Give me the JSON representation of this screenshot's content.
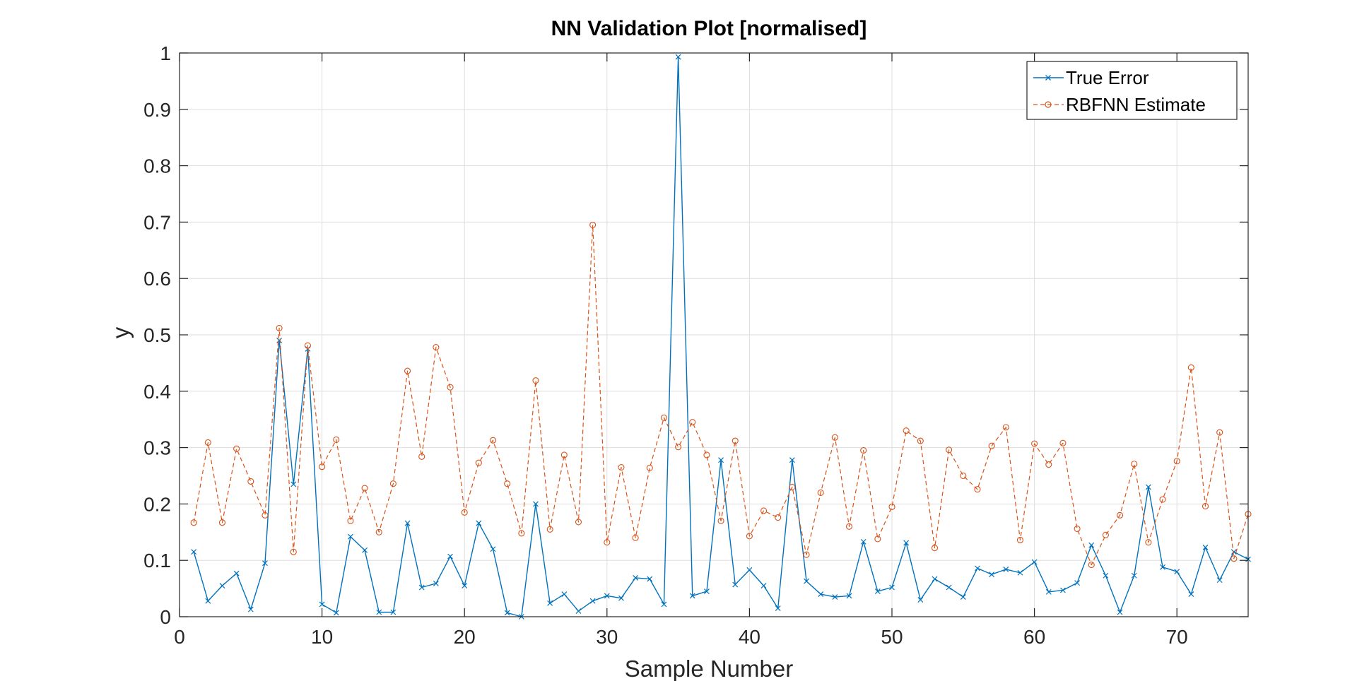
{
  "chart_data": {
    "type": "line",
    "title": "NN Validation Plot [normalised]",
    "xlabel": "Sample Number",
    "ylabel": "y",
    "xlim": [
      0,
      75
    ],
    "ylim": [
      0,
      1
    ],
    "xticks": [
      0,
      10,
      20,
      30,
      40,
      50,
      60,
      70
    ],
    "yticks": [
      0,
      0.1,
      0.2,
      0.3,
      0.4,
      0.5,
      0.6,
      0.7,
      0.8,
      0.9,
      1
    ],
    "ytick_labels": [
      "0",
      "0.1",
      "0.2",
      "0.3",
      "0.4",
      "0.5",
      "0.6",
      "0.7",
      "0.8",
      "0.9",
      "1"
    ],
    "grid": true,
    "legend_position": "top-right",
    "x": [
      1,
      2,
      3,
      4,
      5,
      6,
      7,
      8,
      9,
      10,
      11,
      12,
      13,
      14,
      15,
      16,
      17,
      18,
      19,
      20,
      21,
      22,
      23,
      24,
      25,
      26,
      27,
      28,
      29,
      30,
      31,
      32,
      33,
      34,
      35,
      36,
      37,
      38,
      39,
      40,
      41,
      42,
      43,
      44,
      45,
      46,
      47,
      48,
      49,
      50,
      51,
      52,
      53,
      54,
      55,
      56,
      57,
      58,
      59,
      60,
      61,
      62,
      63,
      64,
      65,
      66,
      67,
      68,
      69,
      70,
      71,
      72,
      73,
      74,
      75
    ],
    "series": [
      {
        "name": "True Error",
        "color": "#0072BD",
        "line_style": "solid",
        "marker": "x",
        "values": [
          0.115,
          0.028,
          0.055,
          0.077,
          0.013,
          0.095,
          0.49,
          0.235,
          0.475,
          0.022,
          0.007,
          0.142,
          0.118,
          0.008,
          0.008,
          0.166,
          0.052,
          0.059,
          0.107,
          0.055,
          0.166,
          0.12,
          0.007,
          0.0,
          0.2,
          0.024,
          0.04,
          0.01,
          0.028,
          0.037,
          0.033,
          0.069,
          0.067,
          0.022,
          0.993,
          0.037,
          0.045,
          0.278,
          0.057,
          0.083,
          0.055,
          0.015,
          0.278,
          0.063,
          0.04,
          0.035,
          0.037,
          0.133,
          0.045,
          0.052,
          0.131,
          0.03,
          0.067,
          0.052,
          0.035,
          0.086,
          0.075,
          0.084,
          0.078,
          0.097,
          0.044,
          0.047,
          0.06,
          0.127,
          0.073,
          0.008,
          0.073,
          0.23,
          0.088,
          0.08,
          0.04,
          0.123,
          0.065,
          0.115,
          0.102
        ]
      },
      {
        "name": "RBFNN Estimate",
        "color": "#D95319",
        "line_style": "dashed",
        "marker": "o",
        "values": [
          0.167,
          0.309,
          0.167,
          0.298,
          0.24,
          0.18,
          0.512,
          0.115,
          0.481,
          0.266,
          0.314,
          0.17,
          0.228,
          0.15,
          0.236,
          0.436,
          0.284,
          0.478,
          0.407,
          0.185,
          0.273,
          0.313,
          0.236,
          0.148,
          0.419,
          0.155,
          0.287,
          0.168,
          0.695,
          0.132,
          0.265,
          0.14,
          0.264,
          0.353,
          0.301,
          0.345,
          0.287,
          0.17,
          0.312,
          0.143,
          0.188,
          0.176,
          0.23,
          0.11,
          0.22,
          0.318,
          0.16,
          0.295,
          0.138,
          0.195,
          0.33,
          0.312,
          0.122,
          0.296,
          0.25,
          0.226,
          0.303,
          0.336,
          0.136,
          0.307,
          0.27,
          0.308,
          0.156,
          0.092,
          0.145,
          0.18,
          0.271,
          0.132,
          0.208,
          0.276,
          0.442,
          0.196,
          0.327,
          0.103,
          0.182
        ]
      }
    ]
  }
}
